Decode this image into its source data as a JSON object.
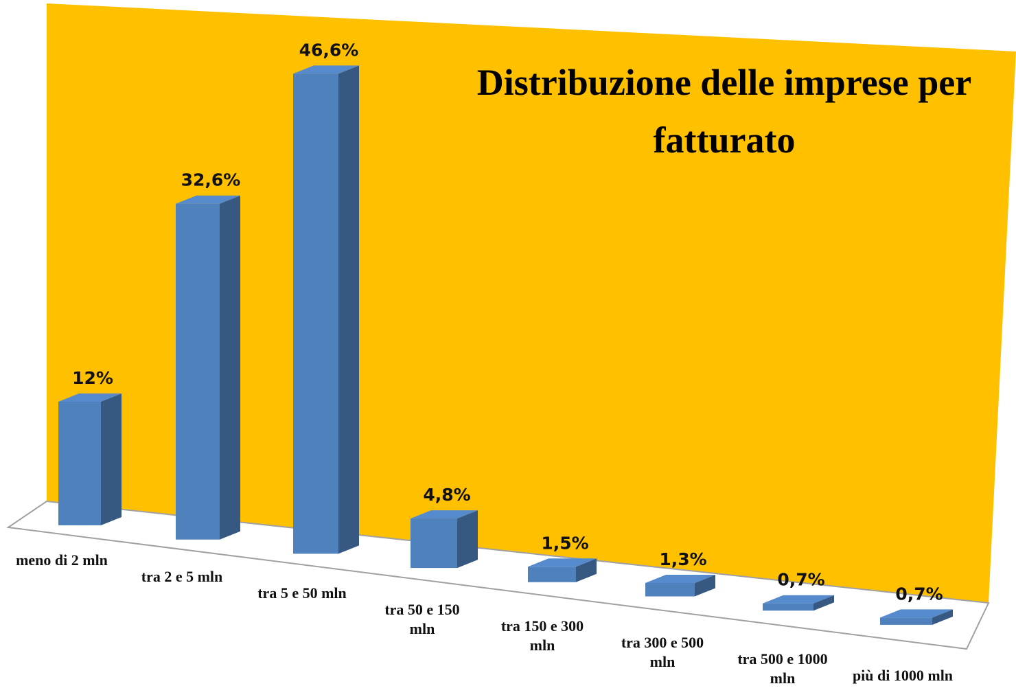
{
  "chart_data": {
    "type": "bar3d",
    "title": "Distribuzione delle imprese per fatturato",
    "categories": [
      "meno di 2 mln",
      "tra 2 e 5 mln",
      "tra 5 e 50 mln",
      "tra 50 e 150 mln",
      "tra 150 e 300 mln",
      "tra 300 e 500 mln",
      "tra 500 e 1000 mln",
      "più di 1000 mln"
    ],
    "values": [
      12,
      32.6,
      46.6,
      4.8,
      1.5,
      1.3,
      0.7,
      0.7
    ],
    "value_labels": [
      "12%",
      "32,6%",
      "46,6%",
      "4,8%",
      "1,5%",
      "1,3%",
      "0,7%",
      "0,7%"
    ],
    "color": "#4f81bd",
    "background_color": "#ffc000"
  }
}
